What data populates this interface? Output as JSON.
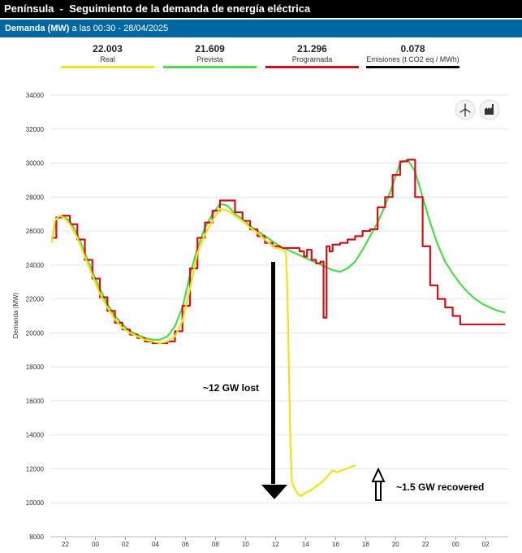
{
  "header": {
    "region": "Península",
    "separator": "-",
    "title": "Seguimiento de la demanda de energía eléctrica"
  },
  "subheader": {
    "measure": "Demanda (MW)",
    "timestamp": "a las 00:30 - 28/04/2025"
  },
  "legend": [
    {
      "value": "22.003",
      "label": "Real",
      "color": "#f2e21a"
    },
    {
      "value": "21.609",
      "label": "Prevista",
      "color": "#4ddb4d"
    },
    {
      "value": "21.296",
      "label": "Programada",
      "color": "#d0101a"
    },
    {
      "value": "0.078",
      "label": "Emisiones (t CO2 eq / MWh)",
      "color": "#000000"
    }
  ],
  "toolbar": {
    "icons": [
      "wind-turbine-icon",
      "factory-icon"
    ]
  },
  "annotations": {
    "lost_text": "~12 GW lost",
    "recovered_text": "~1.5 GW recovered"
  },
  "chart_data": {
    "type": "line",
    "ylabel": "Demanda (MW)",
    "ylim": [
      8000,
      34000
    ],
    "yticks": [
      8000,
      10000,
      12000,
      14000,
      16000,
      18000,
      20000,
      22000,
      24000,
      26000,
      28000,
      30000,
      32000,
      34000
    ],
    "xlabel": "",
    "xlim": [
      21.0,
      51.5
    ],
    "xticks": [
      22,
      24,
      26,
      28,
      30,
      32,
      34,
      36,
      38,
      40,
      42,
      44,
      46,
      48,
      50
    ],
    "xtick_labels": [
      "22",
      "00",
      "02",
      "04",
      "06",
      "08",
      "10",
      "12",
      "14",
      "16",
      "18",
      "20",
      "22",
      "00",
      "02"
    ],
    "grid": "horizontal",
    "series": [
      {
        "name": "Real",
        "color": "#f2e21a",
        "x": [
          21.1,
          21.3,
          21.6,
          21.9,
          22.3,
          22.8,
          23.3,
          23.8,
          24.3,
          24.8,
          25.3,
          25.8,
          26.3,
          26.8,
          27.3,
          27.8,
          28.3,
          28.8,
          29.3,
          29.8,
          30.3,
          30.8,
          31.3,
          31.8,
          32.3,
          32.8,
          33.3,
          33.8,
          34.3,
          34.8,
          35.3,
          35.7,
          36.0,
          36.2,
          36.5,
          36.7,
          36.8,
          36.9,
          37.0,
          37.1,
          37.3,
          37.5,
          37.7,
          38.0,
          38.3,
          38.6,
          38.9,
          39.2,
          39.5,
          39.8,
          40.1,
          40.4,
          40.7,
          41.0,
          41.3
        ],
        "y": [
          25300,
          26600,
          26900,
          26800,
          26400,
          25600,
          24500,
          23400,
          22300,
          21500,
          20800,
          20300,
          20000,
          19800,
          19600,
          19500,
          19400,
          19500,
          19800,
          20700,
          22600,
          24700,
          25800,
          26600,
          27300,
          27200,
          26900,
          26600,
          26200,
          25900,
          25500,
          25200,
          25000,
          25000,
          24900,
          24700,
          22000,
          17500,
          13000,
          11200,
          10800,
          10500,
          10400,
          10600,
          10700,
          10900,
          11100,
          11300,
          11600,
          11900,
          11800,
          11900,
          12000,
          12100,
          12200
        ]
      },
      {
        "name": "Prevista",
        "color": "#4ddb4d",
        "x": [
          21.1,
          21.4,
          21.8,
          22.3,
          22.8,
          23.3,
          23.8,
          24.3,
          24.8,
          25.3,
          25.8,
          26.3,
          26.8,
          27.3,
          27.8,
          28.3,
          28.8,
          29.3,
          29.8,
          30.3,
          30.8,
          31.3,
          31.8,
          32.3,
          32.8,
          33.3,
          33.8,
          34.3,
          34.8,
          35.3,
          35.8,
          36.3,
          36.8,
          37.3,
          37.8,
          38.3,
          38.8,
          39.3,
          39.8,
          40.3,
          40.8,
          41.3,
          41.8,
          42.3,
          42.8,
          43.3,
          43.8,
          44.3,
          44.8,
          45.3,
          45.8,
          46.3,
          46.8,
          47.3,
          47.8,
          48.3,
          48.8,
          49.3,
          49.8,
          50.3,
          50.8,
          51.3
        ],
        "y": [
          25500,
          26700,
          26900,
          26600,
          25800,
          24700,
          23600,
          22600,
          21700,
          21000,
          20500,
          20100,
          19900,
          19700,
          19600,
          19600,
          19800,
          20400,
          21500,
          23400,
          25000,
          26200,
          27000,
          27600,
          27500,
          27000,
          26700,
          26300,
          26000,
          25700,
          25400,
          25100,
          24900,
          24700,
          24500,
          24300,
          24100,
          23900,
          23700,
          23600,
          23800,
          24200,
          24900,
          25700,
          26500,
          27500,
          28700,
          30000,
          30200,
          29500,
          28000,
          26500,
          25200,
          24200,
          23500,
          22900,
          22400,
          22000,
          21700,
          21500,
          21300,
          21200
        ]
      },
      {
        "name": "Programada",
        "color": "#d0101a",
        "x": [
          21.1,
          21.4,
          21.8,
          22.3,
          22.8,
          23.3,
          23.8,
          24.3,
          24.8,
          25.3,
          25.8,
          26.3,
          26.8,
          27.3,
          27.8,
          28.3,
          28.8,
          29.3,
          29.8,
          30.3,
          30.8,
          31.3,
          31.8,
          32.3,
          32.8,
          33.3,
          33.8,
          34.3,
          34.8,
          35.3,
          35.8,
          36.3,
          36.8,
          37.3,
          37.6,
          37.9,
          38.1,
          38.4,
          38.7,
          39.0,
          39.2,
          39.4,
          39.6,
          39.8,
          40.3,
          40.8,
          41.3,
          41.8,
          42.3,
          42.8,
          43.3,
          43.8,
          44.3,
          44.8,
          45.3,
          45.8,
          46.3,
          46.8,
          47.3,
          47.8,
          48.3,
          48.8,
          49.3,
          49.8,
          50.3,
          50.8,
          51.3
        ],
        "y": [
          25600,
          26800,
          26900,
          26400,
          25500,
          24300,
          23200,
          22100,
          21300,
          20600,
          20200,
          19900,
          19700,
          19500,
          19400,
          19400,
          19500,
          20100,
          21600,
          23800,
          25600,
          26500,
          27200,
          27800,
          27800,
          27100,
          26600,
          26100,
          25700,
          25300,
          25100,
          25000,
          25000,
          25000,
          24800,
          24500,
          24900,
          24300,
          24100,
          24200,
          20900,
          25100,
          24800,
          25200,
          25300,
          25500,
          25700,
          26000,
          26100,
          27400,
          28000,
          29300,
          30100,
          30200,
          28000,
          25100,
          22800,
          22000,
          21500,
          21000,
          20500,
          20500,
          20500,
          20500,
          20500,
          20500,
          20500
        ]
      }
    ]
  }
}
